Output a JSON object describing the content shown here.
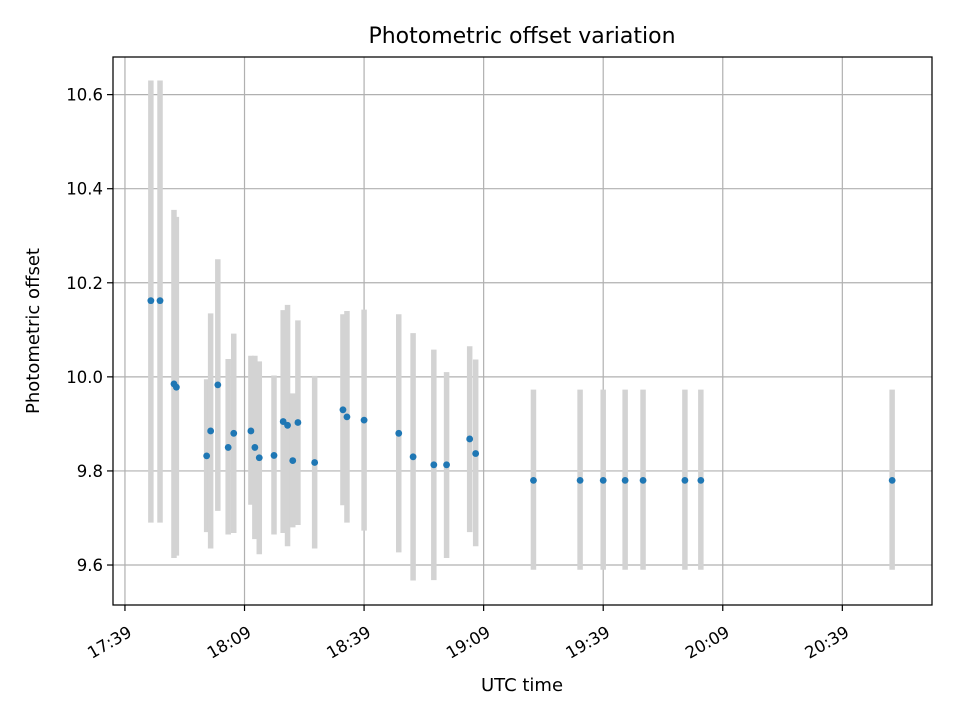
{
  "chart_data": {
    "type": "scatter",
    "title": "Photometric offset variation",
    "xlabel": "UTC time",
    "ylabel": "Photometric offset",
    "x_tick_labels": [
      "17:39",
      "18:09",
      "18:39",
      "19:09",
      "19:39",
      "20:09",
      "20:39"
    ],
    "x_tick_minutes": [
      0,
      30,
      60,
      90,
      120,
      150,
      180
    ],
    "y_ticks": [
      9.6,
      9.8,
      10.0,
      10.2,
      10.4,
      10.6
    ],
    "y_tick_labels": [
      "9.6",
      "9.8",
      "10.0",
      "10.2",
      "10.4",
      "10.6"
    ],
    "xlim_minutes": [
      -3,
      202.5
    ],
    "ylim": [
      9.515,
      10.68
    ],
    "grid": true,
    "marker_color": "#1f77b4",
    "errorbar_color": "#d3d3d3",
    "points": [
      {
        "t": 6.5,
        "y": 10.162,
        "lo": 9.69,
        "hi": 10.63
      },
      {
        "t": 8.8,
        "y": 10.162,
        "lo": 9.69,
        "hi": 10.63
      },
      {
        "t": 12.3,
        "y": 9.985,
        "lo": 9.615,
        "hi": 10.355
      },
      {
        "t": 12.9,
        "y": 9.978,
        "lo": 9.62,
        "hi": 10.34
      },
      {
        "t": 20.5,
        "y": 9.832,
        "lo": 9.67,
        "hi": 9.995
      },
      {
        "t": 21.5,
        "y": 9.885,
        "lo": 9.635,
        "hi": 10.135
      },
      {
        "t": 23.3,
        "y": 9.983,
        "lo": 9.715,
        "hi": 10.25
      },
      {
        "t": 25.9,
        "y": 9.85,
        "lo": 9.665,
        "hi": 10.038
      },
      {
        "t": 27.3,
        "y": 9.88,
        "lo": 9.668,
        "hi": 10.092
      },
      {
        "t": 31.6,
        "y": 9.885,
        "lo": 9.728,
        "hi": 10.045
      },
      {
        "t": 32.6,
        "y": 9.85,
        "lo": 9.655,
        "hi": 10.045
      },
      {
        "t": 33.7,
        "y": 9.828,
        "lo": 9.623,
        "hi": 10.033
      },
      {
        "t": 37.4,
        "y": 9.833,
        "lo": 9.665,
        "hi": 10.003
      },
      {
        "t": 39.7,
        "y": 9.905,
        "lo": 9.668,
        "hi": 10.142
      },
      {
        "t": 40.8,
        "y": 9.897,
        "lo": 9.64,
        "hi": 10.153
      },
      {
        "t": 42.1,
        "y": 9.822,
        "lo": 9.68,
        "hi": 9.965
      },
      {
        "t": 43.4,
        "y": 9.903,
        "lo": 9.685,
        "hi": 10.12
      },
      {
        "t": 47.6,
        "y": 9.818,
        "lo": 9.635,
        "hi": 10.002
      },
      {
        "t": 54.7,
        "y": 9.93,
        "lo": 9.727,
        "hi": 10.133
      },
      {
        "t": 55.7,
        "y": 9.915,
        "lo": 9.69,
        "hi": 10.14
      },
      {
        "t": 60.0,
        "y": 9.908,
        "lo": 9.673,
        "hi": 10.143
      },
      {
        "t": 68.7,
        "y": 9.88,
        "lo": 9.627,
        "hi": 10.133
      },
      {
        "t": 72.3,
        "y": 9.83,
        "lo": 9.567,
        "hi": 10.093
      },
      {
        "t": 77.5,
        "y": 9.813,
        "lo": 9.568,
        "hi": 10.058
      },
      {
        "t": 80.7,
        "y": 9.813,
        "lo": 9.615,
        "hi": 10.01
      },
      {
        "t": 86.5,
        "y": 9.868,
        "lo": 9.67,
        "hi": 10.065
      },
      {
        "t": 88.0,
        "y": 9.837,
        "lo": 9.64,
        "hi": 10.037
      },
      {
        "t": 102.5,
        "y": 9.78,
        "lo": 9.59,
        "hi": 9.973
      },
      {
        "t": 114.2,
        "y": 9.78,
        "lo": 9.59,
        "hi": 9.973
      },
      {
        "t": 120.0,
        "y": 9.78,
        "lo": 9.59,
        "hi": 9.973
      },
      {
        "t": 125.5,
        "y": 9.78,
        "lo": 9.59,
        "hi": 9.973
      },
      {
        "t": 130.0,
        "y": 9.78,
        "lo": 9.59,
        "hi": 9.973
      },
      {
        "t": 140.5,
        "y": 9.78,
        "lo": 9.59,
        "hi": 9.973
      },
      {
        "t": 144.5,
        "y": 9.78,
        "lo": 9.59,
        "hi": 9.973
      },
      {
        "t": 192.5,
        "y": 9.78,
        "lo": 9.59,
        "hi": 9.973
      }
    ]
  }
}
